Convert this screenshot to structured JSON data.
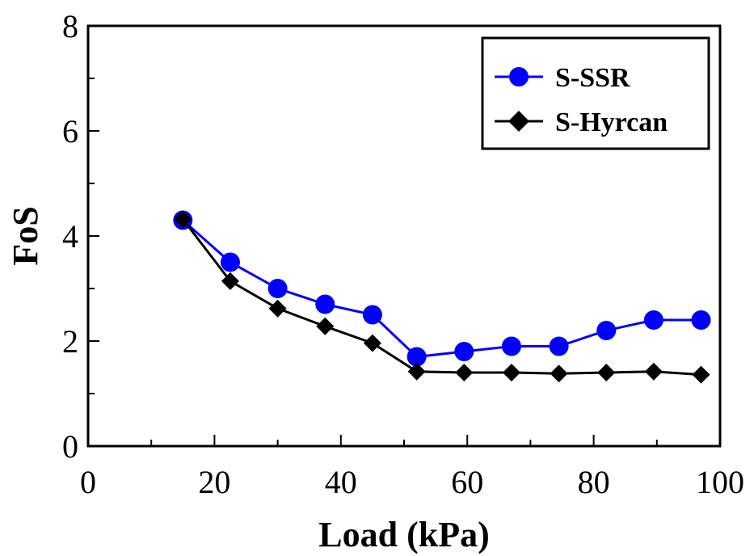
{
  "chart_data": {
    "type": "line",
    "xlabel": "Load (kPa)",
    "ylabel": "FoS",
    "xlim": [
      0,
      100
    ],
    "ylim": [
      0,
      8
    ],
    "x_major_ticks": [
      0,
      20,
      40,
      60,
      80,
      100
    ],
    "x_minor_ticks": [
      10,
      30,
      50,
      70,
      90
    ],
    "y_major_ticks": [
      0,
      2,
      4,
      6,
      8
    ],
    "y_minor_ticks": [
      1,
      3,
      5,
      7
    ],
    "grid": false,
    "legend_position": "top-right",
    "series": [
      {
        "name": "S-SSR",
        "color": "#0000ff",
        "marker": "circle",
        "x": [
          15,
          22.5,
          30,
          37.5,
          45,
          52,
          59.5,
          67,
          74.5,
          82,
          89.5,
          97
        ],
        "y": [
          4.3,
          3.5,
          3.0,
          2.7,
          2.5,
          1.7,
          1.8,
          1.9,
          1.9,
          2.2,
          2.4,
          2.4
        ]
      },
      {
        "name": "S-Hyrcan",
        "color": "#000000",
        "marker": "diamond",
        "x": [
          15,
          22.5,
          30,
          37.5,
          45,
          52,
          59.5,
          67,
          74.5,
          82,
          89.5,
          97
        ],
        "y": [
          4.32,
          3.14,
          2.62,
          2.28,
          1.96,
          1.42,
          1.4,
          1.4,
          1.38,
          1.4,
          1.42,
          1.36
        ]
      }
    ]
  }
}
